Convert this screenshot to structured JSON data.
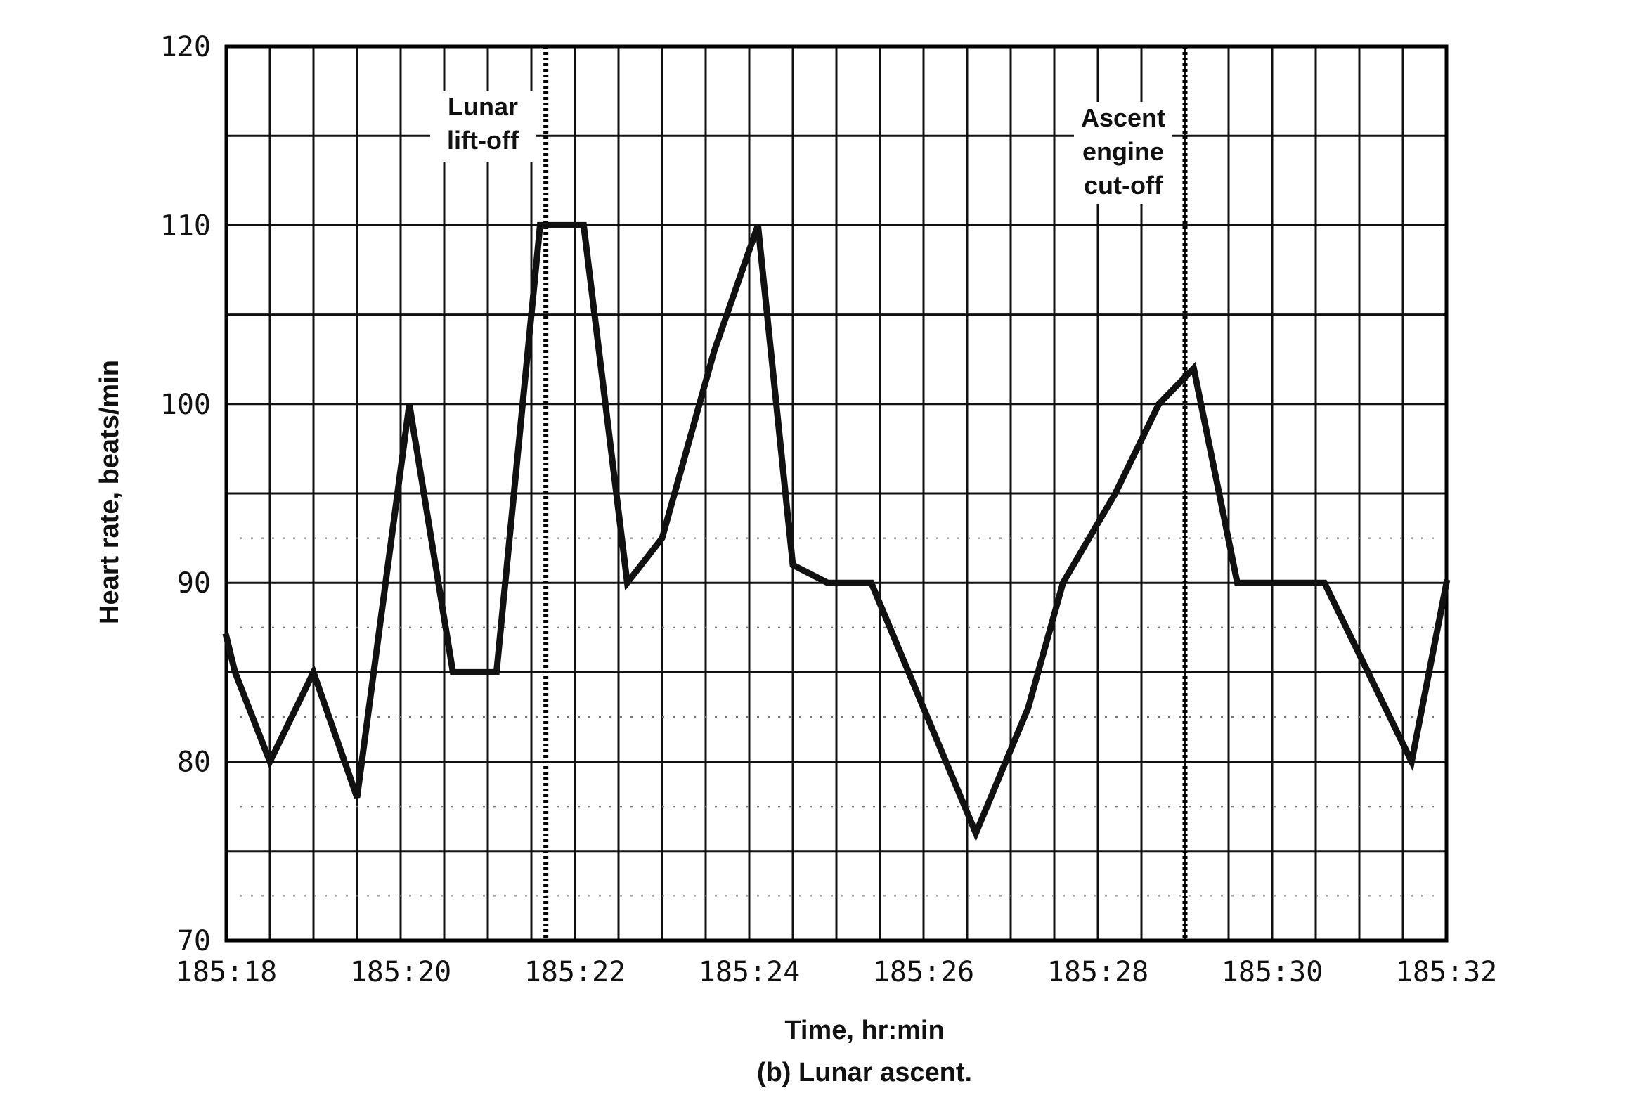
{
  "chart_data": {
    "type": "line",
    "xlabel": "Time, hr:min",
    "ylabel": "Heart rate, beats/min",
    "caption": "(b) Lunar ascent.",
    "xlim": [
      "185:18",
      "185:32"
    ],
    "ylim": [
      70,
      120
    ],
    "x_ticks": [
      "185:18",
      "185:20",
      "185:22",
      "185:24",
      "185:26",
      "185:28",
      "185:30",
      "185:32"
    ],
    "y_ticks": [
      70,
      80,
      90,
      100,
      110,
      120
    ],
    "grid": true,
    "series": [
      {
        "x": [
          "185:18:00",
          "185:18:06",
          "185:18:30",
          "185:19:00",
          "185:19:30",
          "185:20:06",
          "185:20:36",
          "185:21:06",
          "185:21:36",
          "185:22:06",
          "185:22:36",
          "185:23:00",
          "185:23:36",
          "185:24:06",
          "185:24:30",
          "185:24:54",
          "185:25:24",
          "185:26:00",
          "185:26:36",
          "185:27:12",
          "185:27:36",
          "185:28:12",
          "185:28:42",
          "185:29:06",
          "185:29:36",
          "185:30:12",
          "185:30:36",
          "185:31:00",
          "185:31:36",
          "185:32:00"
        ],
        "values": [
          87,
          85,
          80,
          85,
          78,
          100,
          85,
          85,
          110,
          110,
          90,
          92.5,
          103,
          110,
          91,
          90,
          90,
          83,
          76,
          83,
          90,
          95,
          100,
          102,
          90,
          90,
          90,
          86,
          80,
          90
        ]
      }
    ],
    "annotations": [
      {
        "x": "185:21:40",
        "label_lines": [
          "Lunar",
          "lift-off"
        ]
      },
      {
        "x": "185:29:00",
        "label_lines": [
          "Ascent",
          "engine",
          "cut-off"
        ]
      }
    ]
  },
  "colors": {
    "line": "#111111",
    "grid": "#111111",
    "background": "#ffffff"
  }
}
